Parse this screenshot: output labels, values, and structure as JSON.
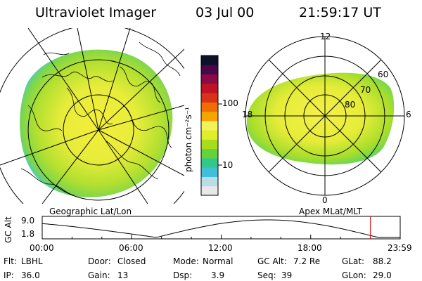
{
  "header": {
    "title": "Ultraviolet Imager",
    "date": "03 Jul 00",
    "time": "21:59:17 UT"
  },
  "left_panel": {
    "caption": "Geographic Lat/Lon"
  },
  "right_panel": {
    "caption": "Apex MLat/MLT",
    "mlt_labels": {
      "top": "12",
      "left": "18",
      "right": "6",
      "bottom": "0"
    },
    "lat_labels": [
      "60",
      "70",
      "80"
    ]
  },
  "colorbar": {
    "unit_label": "photon cm⁻²s⁻¹",
    "tick_100": "100",
    "tick_10": "10",
    "colors": [
      "#e8e8e8",
      "#b8dde6",
      "#3fc0d8",
      "#34c78a",
      "#66d23a",
      "#a6de1e",
      "#e1ec2a",
      "#f0f35a",
      "#f5a400",
      "#ef6d05",
      "#d9321b",
      "#c01224",
      "#8c0a46",
      "#4a0848",
      "#10102a"
    ]
  },
  "altitude_plot": {
    "ylabel": "GC Alt",
    "y_max_label": "9.0",
    "y_min_label": "1.8",
    "x_ticks": [
      "00:00",
      "06:00",
      "12:00",
      "18:00",
      "23:59"
    ],
    "current_time_fraction": 0.9167,
    "apogee_value": 9.0,
    "perigee_value": 1.8
  },
  "info": {
    "row1": [
      {
        "label": "Flt:",
        "value": "LBHL"
      },
      {
        "label": "Door:",
        "value": "Closed"
      },
      {
        "label": "Mode:",
        "value": "Normal"
      },
      {
        "label": "GC Alt:",
        "value": "7.2 Re"
      },
      {
        "label": "GLat:",
        "value": "88.2"
      }
    ],
    "row2": [
      {
        "label": "IP:",
        "value": "36.0"
      },
      {
        "label": "Gain:",
        "value": "13"
      },
      {
        "label": "Dsp:",
        "value": "3.9"
      },
      {
        "label": "Seq:",
        "value": "39"
      },
      {
        "label": "GLon:",
        "value": "29.0"
      }
    ]
  }
}
